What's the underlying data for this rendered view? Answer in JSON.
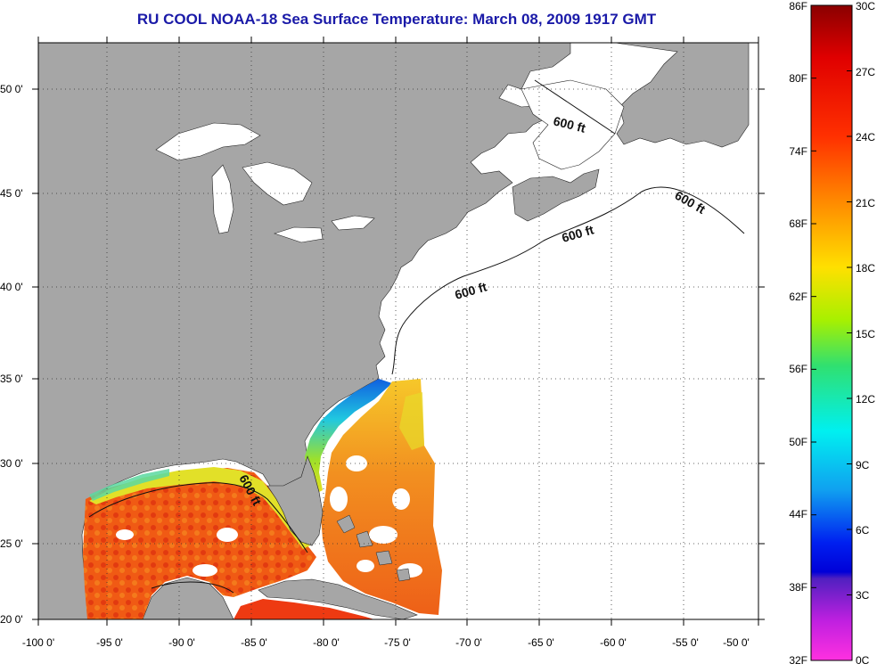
{
  "title": "RU COOL  NOAA-18  Sea Surface Temperature:  March 08, 2009 1917 GMT",
  "map": {
    "lat_labels": [
      "50 0'",
      "45 0'",
      "40 0'",
      "35 0'",
      "30 0'",
      "25 0'",
      "20 0'"
    ],
    "lon_labels": [
      "-100 0'",
      "-95 0'",
      "-90 0'",
      "-85 0'",
      "-80 0'",
      "-75 0'",
      "-70 0'",
      "-65 0'",
      "-60 0'",
      "-55 0'",
      "-50 0'"
    ],
    "contour_labels": [
      "600 ft",
      "600 ft",
      "600 ft",
      "600 ft",
      "600 ft"
    ],
    "colors": {
      "land": "#a6a6a6",
      "no_data": "#ffffff",
      "frame": "#000000"
    }
  },
  "colorbar": {
    "fahrenheit_labels": [
      "86F",
      "80F",
      "74F",
      "68F",
      "62F",
      "56F",
      "50F",
      "44F",
      "38F",
      "32F"
    ],
    "celsius_labels": [
      "30C",
      "27C",
      "24C",
      "21C",
      "18C",
      "15C",
      "12C",
      "9C",
      "6C",
      "3C",
      "0C"
    ],
    "celsius_min": 0,
    "celsius_max": 30
  }
}
